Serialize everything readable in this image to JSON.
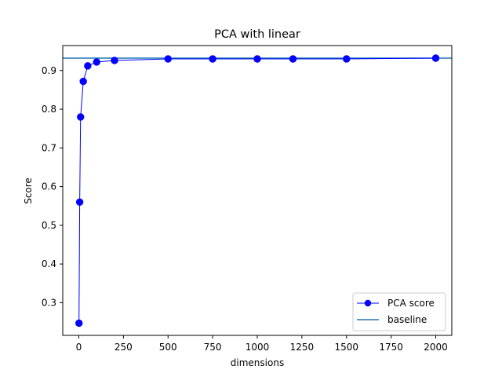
{
  "chart_data": {
    "type": "line",
    "title": "PCA with linear",
    "xlabel": "dimensions",
    "ylabel": "Score",
    "xlim": [
      -90,
      2090
    ],
    "ylim": [
      0.2155,
      0.9645
    ],
    "xticks": [
      0,
      250,
      500,
      750,
      1000,
      1250,
      1500,
      1750,
      2000
    ],
    "xtick_labels": [
      "0",
      "250",
      "500",
      "750",
      "1000",
      "1250",
      "1500",
      "1750",
      "2000"
    ],
    "yticks": [
      0.3,
      0.4,
      0.5,
      0.6,
      0.7,
      0.8,
      0.9
    ],
    "ytick_labels": [
      "0.3",
      "0.4",
      "0.5",
      "0.6",
      "0.7",
      "0.8",
      "0.9"
    ],
    "grid": false,
    "legend_position": "bottom-right",
    "series": [
      {
        "name": "PCA score",
        "color": "#0000ff",
        "marker": "circle",
        "x": [
          1,
          5,
          10,
          25,
          50,
          100,
          200,
          500,
          750,
          1000,
          1200,
          1500,
          2000
        ],
        "y": [
          0.247,
          0.56,
          0.78,
          0.872,
          0.912,
          0.922,
          0.926,
          0.93,
          0.93,
          0.93,
          0.93,
          0.93,
          0.932
        ]
      },
      {
        "name": "baseline",
        "color": "#1f77b4",
        "type": "hline",
        "y": 0.932
      }
    ]
  }
}
